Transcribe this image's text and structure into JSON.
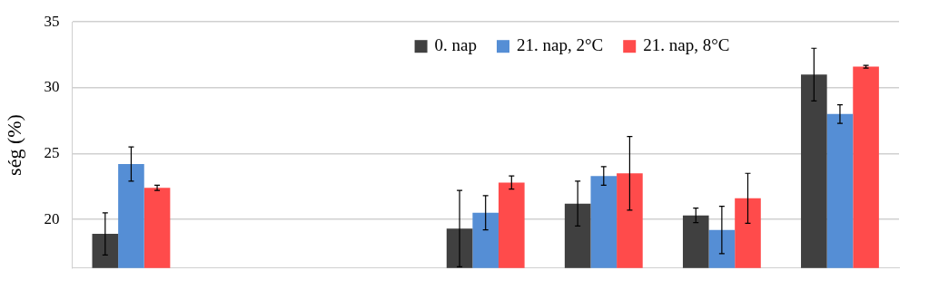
{
  "chart_data": {
    "type": "bar",
    "ylabel": "ség (%)",
    "categories": [
      null,
      null,
      null,
      null,
      null,
      null,
      null
    ],
    "series": [
      {
        "name": "0. nap",
        "color": "#404040",
        "values": [
          18.9,
          null,
          null,
          19.3,
          21.2,
          20.3,
          31.0
        ],
        "errors": [
          1.6,
          null,
          null,
          2.9,
          1.7,
          0.55,
          2.0
        ]
      },
      {
        "name": "21. nap, 2°C",
        "color": "#558ed5",
        "values": [
          24.2,
          null,
          null,
          20.5,
          23.3,
          19.2,
          28.0
        ],
        "errors": [
          1.3,
          null,
          null,
          1.3,
          0.7,
          1.8,
          0.7
        ]
      },
      {
        "name": "21. nap, 8°C",
        "color": "#ff4b4b",
        "values": [
          22.4,
          null,
          null,
          22.8,
          23.5,
          21.6,
          31.6
        ],
        "errors": [
          0.2,
          null,
          null,
          0.5,
          2.8,
          1.9,
          0.1
        ]
      }
    ],
    "ylim": [
      16.3,
      35
    ],
    "yticks": [
      20,
      25,
      30,
      35
    ],
    "grid": "y",
    "legend": "top",
    "tick_labels": "y"
  }
}
